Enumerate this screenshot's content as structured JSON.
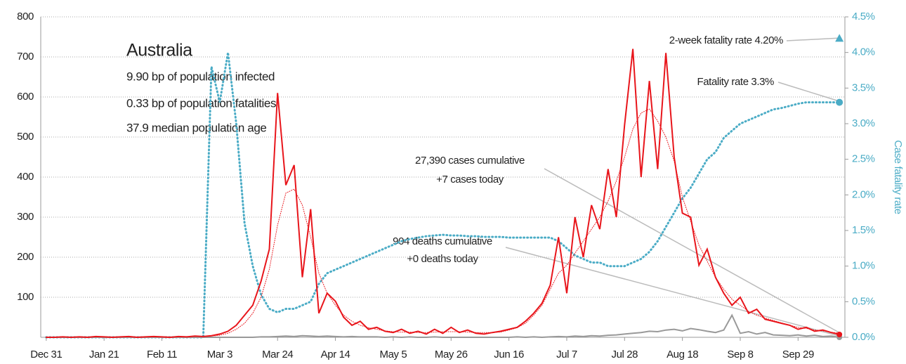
{
  "chart_data": {
    "type": "line",
    "title": "Australia",
    "info": [
      "9.90 bp of population infected",
      "0.33 bp of population fatalities",
      "37.9 median population age"
    ],
    "y2label": "Case fatality rate",
    "annotations": [
      "27,390 cases cumulative",
      "+7 cases today",
      "904 deaths cumulative",
      "+0 deaths today"
    ],
    "markers": [
      {
        "label": "2-week fatality rate 4.20%",
        "value": 4.2,
        "shape": "triangle",
        "axis": "y2"
      },
      {
        "label": "Fatality rate 3.3%",
        "value": 3.3,
        "shape": "circle",
        "axis": "y2"
      }
    ],
    "xlim": [
      -2,
      290
    ],
    "xticks": [
      {
        "value": 0,
        "label": "Dec 31"
      },
      {
        "value": 21,
        "label": "Jan 21"
      },
      {
        "value": 42,
        "label": "Feb 11"
      },
      {
        "value": 63,
        "label": "Mar 3"
      },
      {
        "value": 84,
        "label": "Mar 24"
      },
      {
        "value": 105,
        "label": "Apr 14"
      },
      {
        "value": 126,
        "label": "May 5"
      },
      {
        "value": 147,
        "label": "May 26"
      },
      {
        "value": 168,
        "label": "Jun 16"
      },
      {
        "value": 189,
        "label": "Jul 7"
      },
      {
        "value": 210,
        "label": "Jul 28"
      },
      {
        "value": 231,
        "label": "Aug 18"
      },
      {
        "value": 252,
        "label": "Sep 8"
      },
      {
        "value": 273,
        "label": "Sep 29"
      }
    ],
    "ylim": [
      0,
      800
    ],
    "yticks": [
      100,
      200,
      300,
      400,
      500,
      600,
      700,
      800
    ],
    "y2lim": [
      0,
      4.5
    ],
    "y2ticks": [
      {
        "value": 0,
        "label": "0.0%"
      },
      {
        "value": 0.5,
        "label": "0.5%"
      },
      {
        "value": 1,
        "label": "1.0%"
      },
      {
        "value": 1.5,
        "label": "1.5%"
      },
      {
        "value": 2,
        "label": "2.0%"
      },
      {
        "value": 2.5,
        "label": "2.5%"
      },
      {
        "value": 3,
        "label": "3.0%"
      },
      {
        "value": 3.5,
        "label": "3.5%"
      },
      {
        "value": 4,
        "label": "4.0%"
      },
      {
        "value": 4.5,
        "label": "4.5%"
      }
    ],
    "grid": true,
    "x": [
      0,
      3,
      6,
      9,
      12,
      15,
      18,
      21,
      24,
      27,
      30,
      33,
      36,
      39,
      42,
      45,
      48,
      51,
      54,
      57,
      60,
      63,
      66,
      69,
      72,
      75,
      78,
      81,
      84,
      87,
      90,
      93,
      96,
      99,
      102,
      105,
      108,
      111,
      114,
      117,
      120,
      123,
      126,
      129,
      132,
      135,
      138,
      141,
      144,
      147,
      150,
      153,
      156,
      159,
      162,
      165,
      168,
      171,
      174,
      177,
      180,
      183,
      186,
      189,
      192,
      195,
      198,
      201,
      204,
      207,
      210,
      213,
      216,
      219,
      222,
      225,
      228,
      231,
      234,
      237,
      240,
      243,
      246,
      249,
      252,
      255,
      258,
      261,
      264,
      267,
      270,
      273,
      276,
      279,
      282,
      285,
      288
    ],
    "series": [
      {
        "color": "#4bacc6",
        "style": "dotted",
        "axis": "y2",
        "values": [
          0,
          0,
          0,
          0,
          0,
          0,
          0,
          0,
          0,
          0,
          0,
          0,
          0,
          0,
          0,
          0,
          0,
          0,
          0,
          0,
          3.8,
          3.3,
          4.0,
          3.0,
          1.6,
          1.0,
          0.6,
          0.4,
          0.35,
          0.4,
          0.4,
          0.45,
          0.5,
          0.75,
          0.9,
          0.95,
          1.0,
          1.05,
          1.1,
          1.15,
          1.2,
          1.25,
          1.3,
          1.35,
          1.38,
          1.4,
          1.42,
          1.43,
          1.44,
          1.43,
          1.43,
          1.42,
          1.42,
          1.41,
          1.41,
          1.41,
          1.4,
          1.4,
          1.4,
          1.4,
          1.4,
          1.4,
          1.35,
          1.25,
          1.15,
          1.1,
          1.05,
          1.05,
          1.0,
          1.0,
          1.0,
          1.05,
          1.1,
          1.2,
          1.35,
          1.55,
          1.75,
          1.95,
          2.1,
          2.3,
          2.5,
          2.6,
          2.8,
          2.9,
          3.0,
          3.05,
          3.1,
          3.15,
          3.2,
          3.22,
          3.25,
          3.28,
          3.3,
          3.3,
          3.3,
          3.3,
          3.3
        ]
      },
      {
        "color": "#999999",
        "style": "solid",
        "values": [
          0,
          0,
          0,
          0,
          0,
          0,
          0,
          0,
          0,
          0,
          0,
          0,
          0,
          0,
          0,
          0,
          0,
          0,
          0,
          0,
          0,
          0,
          0,
          0,
          0,
          0,
          1,
          1,
          2,
          3,
          2,
          4,
          3,
          2,
          3,
          2,
          1,
          2,
          1,
          1,
          1,
          0,
          1,
          0,
          1,
          0,
          0,
          1,
          0,
          0,
          0,
          0,
          0,
          0,
          0,
          0,
          0,
          1,
          0,
          1,
          0,
          1,
          2,
          1,
          3,
          2,
          4,
          3,
          5,
          6,
          8,
          10,
          12,
          15,
          14,
          18,
          20,
          16,
          22,
          19,
          15,
          12,
          18,
          55,
          10,
          14,
          8,
          12,
          6,
          5,
          4,
          6,
          3,
          5,
          2,
          3,
          0
        ]
      },
      {
        "color": "#e8151b",
        "style": "dotted",
        "values": [
          0,
          0,
          0,
          0,
          1,
          1,
          1,
          1,
          1,
          1,
          1,
          1,
          1,
          1,
          1,
          1,
          1,
          1,
          2,
          2,
          3,
          5,
          10,
          20,
          35,
          60,
          100,
          170,
          280,
          360,
          370,
          330,
          250,
          160,
          110,
          80,
          55,
          40,
          30,
          24,
          20,
          16,
          14,
          13,
          13,
          12,
          12,
          13,
          14,
          14,
          14,
          13,
          12,
          12,
          12,
          13,
          18,
          24,
          35,
          55,
          80,
          120,
          160,
          180,
          210,
          240,
          270,
          300,
          340,
          390,
          450,
          520,
          560,
          570,
          540,
          500,
          440,
          350,
          290,
          230,
          190,
          150,
          120,
          95,
          80,
          65,
          55,
          48,
          42,
          36,
          30,
          25,
          22,
          18,
          16,
          13,
          10
        ]
      },
      {
        "color": "#e8151b",
        "style": "solid",
        "values": [
          0,
          0,
          1,
          0,
          1,
          0,
          2,
          1,
          0,
          1,
          2,
          0,
          1,
          2,
          1,
          0,
          2,
          1,
          3,
          2,
          4,
          8,
          15,
          30,
          55,
          80,
          140,
          220,
          610,
          380,
          430,
          150,
          320,
          60,
          110,
          90,
          50,
          30,
          40,
          20,
          25,
          15,
          12,
          20,
          10,
          15,
          8,
          20,
          10,
          25,
          12,
          18,
          10,
          8,
          12,
          15,
          20,
          25,
          40,
          60,
          85,
          130,
          250,
          110,
          300,
          200,
          330,
          270,
          420,
          300,
          530,
          720,
          400,
          640,
          420,
          710,
          450,
          310,
          300,
          180,
          220,
          150,
          110,
          80,
          100,
          60,
          70,
          45,
          40,
          35,
          30,
          20,
          25,
          15,
          18,
          12,
          7
        ]
      }
    ]
  }
}
